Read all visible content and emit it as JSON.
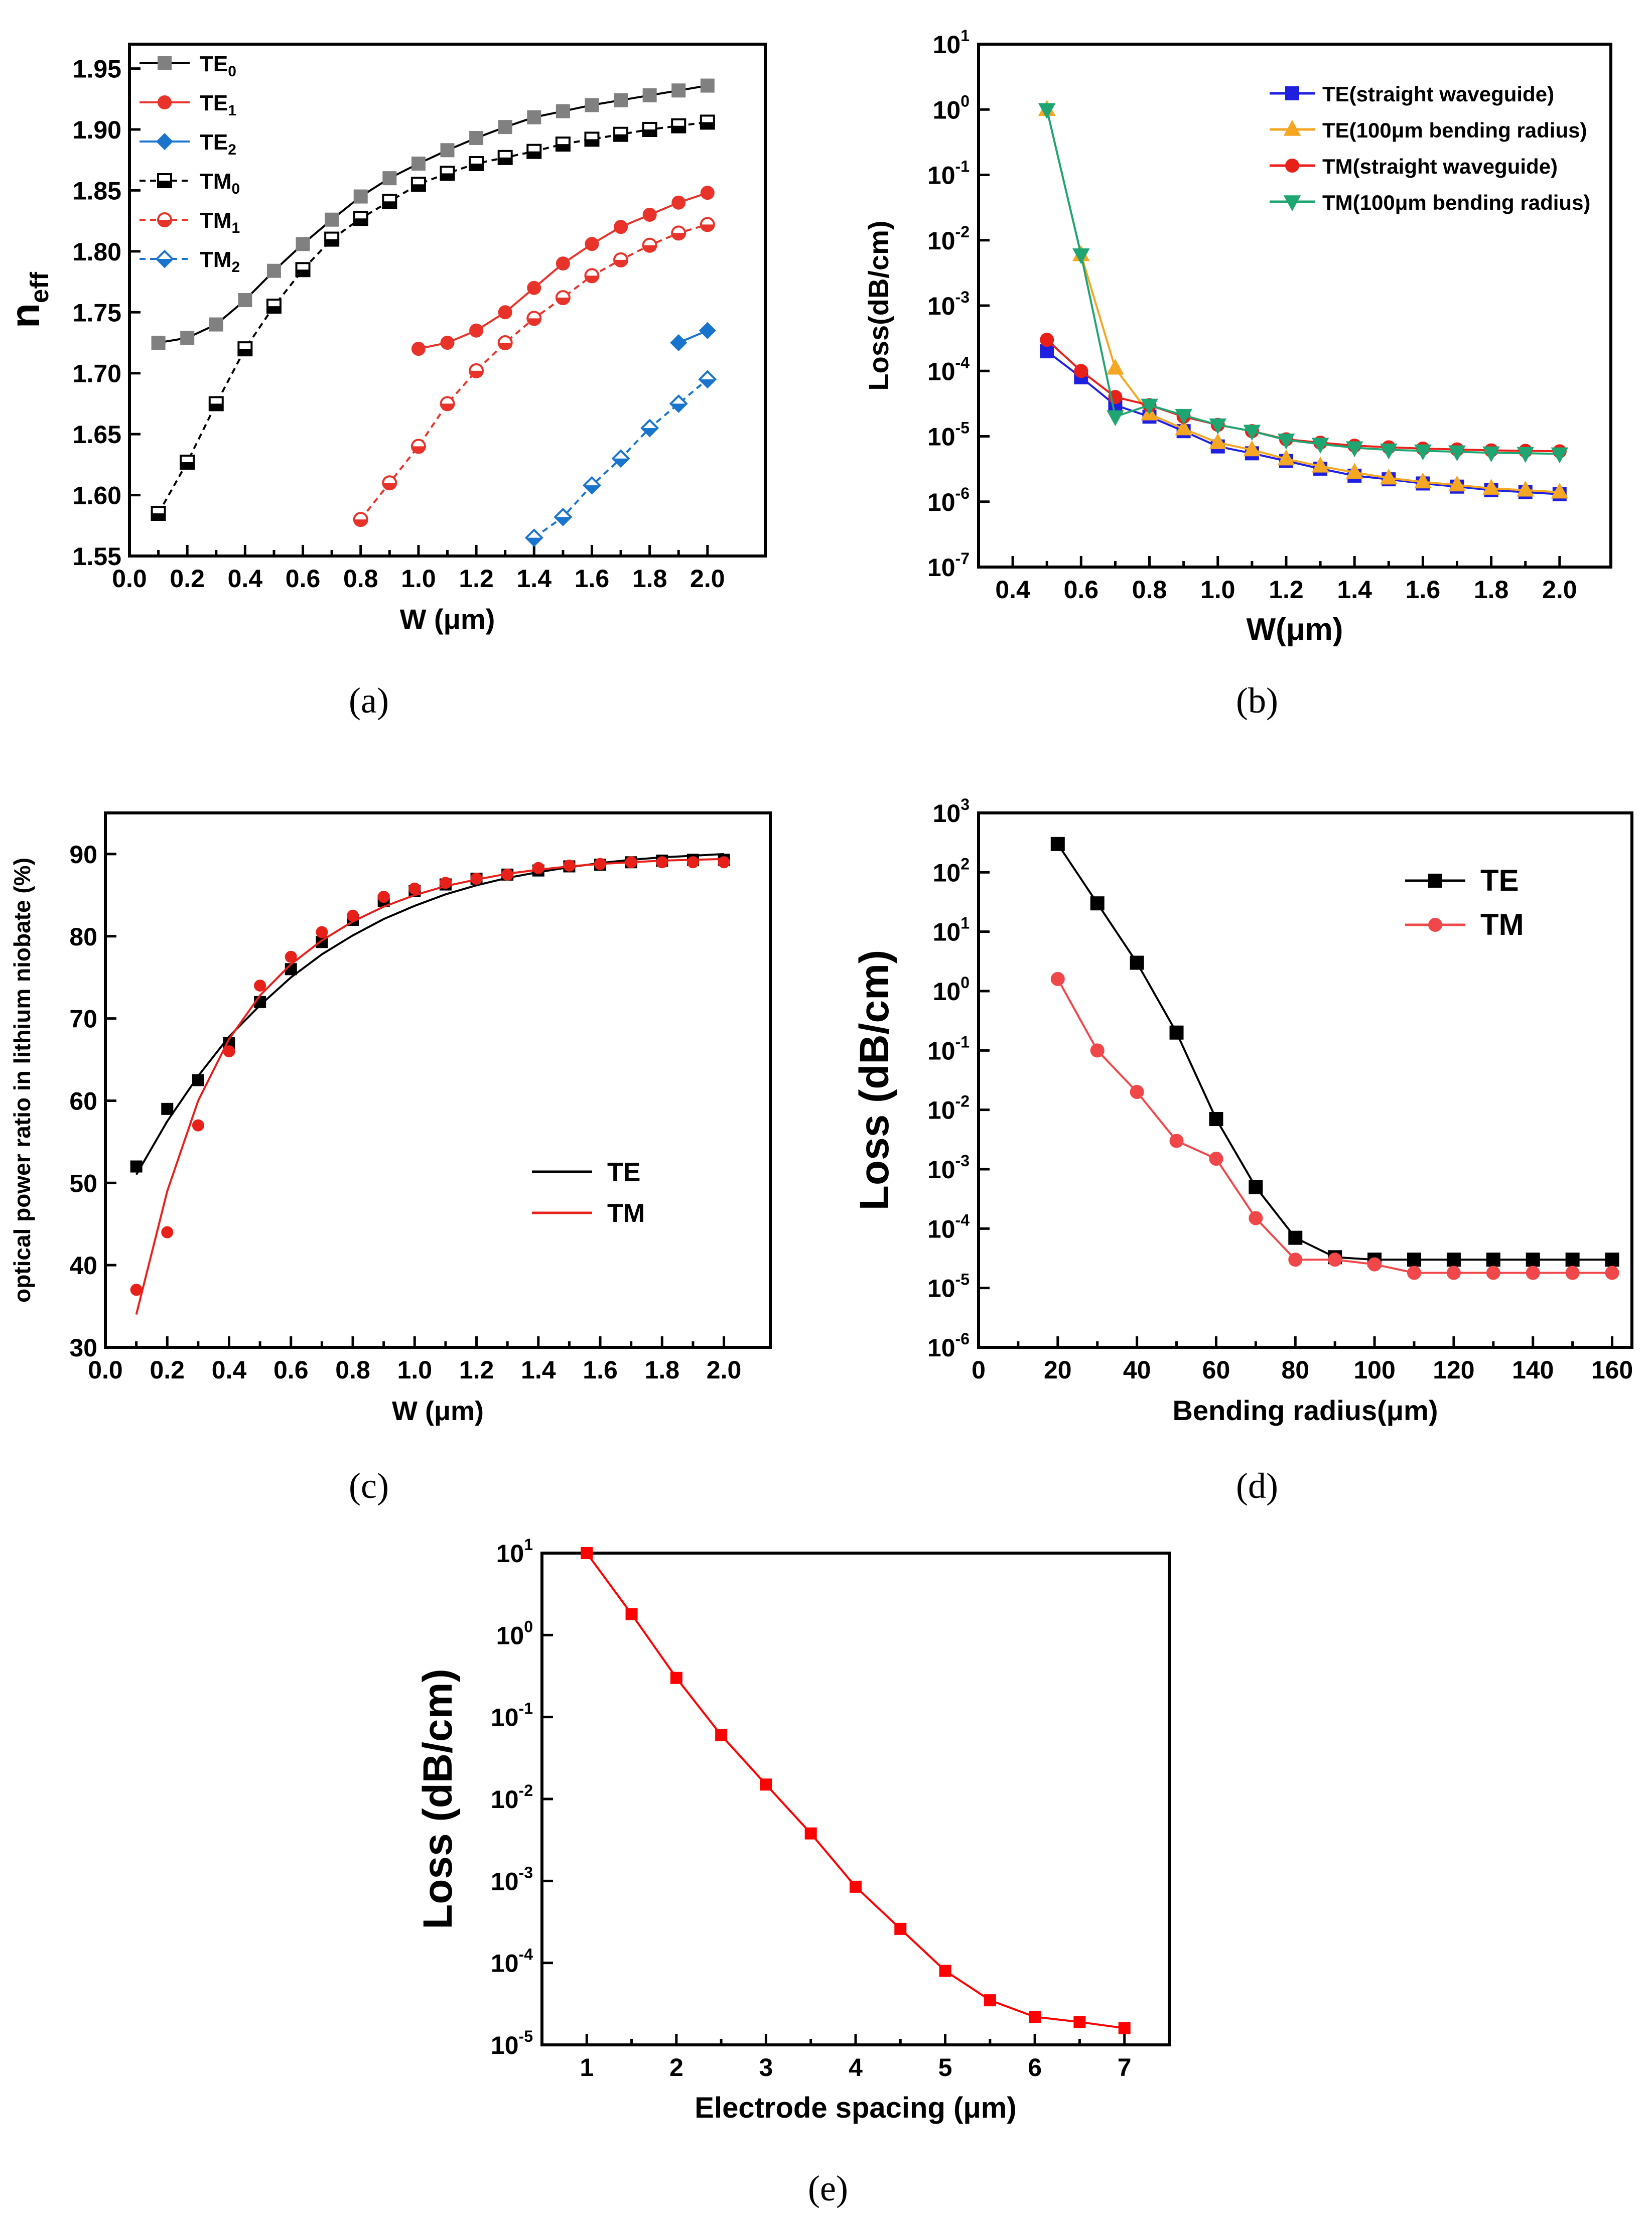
{
  "chart_data": [
    {
      "id": "a",
      "type": "line",
      "panel_label": "(a)",
      "xlabel": "W  (μm)",
      "ylabel": "n",
      "ylabel_sub": "eff",
      "xlim": [
        0.0,
        2.2
      ],
      "ylim": [
        1.55,
        1.97
      ],
      "xticks": [
        0.0,
        0.2,
        0.4,
        0.6,
        0.8,
        1.0,
        1.2,
        1.4,
        1.6,
        1.8,
        2.0
      ],
      "xtick_labels": [
        "0.0",
        "0.2",
        "0.4",
        "0.6",
        "0.8",
        "1.0",
        "1.2",
        "1.4",
        "1.6",
        "1.8",
        "2.0"
      ],
      "yticks": [
        1.55,
        1.6,
        1.65,
        1.7,
        1.75,
        1.8,
        1.85,
        1.9,
        1.95
      ],
      "ytick_labels": [
        "1.55",
        "1.60",
        "1.65",
        "1.70",
        "1.75",
        "1.80",
        "1.85",
        "1.90",
        "1.95"
      ],
      "legend_position": "top-left",
      "series": [
        {
          "name": "TE",
          "sub": "0",
          "color": "#808080",
          "marker": "square",
          "filled": true,
          "dashed": false,
          "line_color": "#000000",
          "x": [
            0.1,
            0.2,
            0.3,
            0.4,
            0.5,
            0.6,
            0.7,
            0.8,
            0.9,
            1.0,
            1.1,
            1.2,
            1.3,
            1.4,
            1.5,
            1.6,
            1.7,
            1.8,
            1.9,
            2.0
          ],
          "y": [
            1.725,
            1.729,
            1.74,
            1.76,
            1.784,
            1.806,
            1.826,
            1.845,
            1.86,
            1.872,
            1.883,
            1.893,
            1.902,
            1.91,
            1.915,
            1.92,
            1.924,
            1.928,
            1.932,
            1.936
          ]
        },
        {
          "name": "TE",
          "sub": "1",
          "color": "#e8332a",
          "marker": "circle",
          "filled": true,
          "dashed": false,
          "line_color": "#e8332a",
          "x": [
            1.0,
            1.1,
            1.2,
            1.3,
            1.4,
            1.5,
            1.6,
            1.7,
            1.8,
            1.9,
            2.0
          ],
          "y": [
            1.72,
            1.725,
            1.735,
            1.75,
            1.77,
            1.79,
            1.806,
            1.82,
            1.83,
            1.84,
            1.848
          ]
        },
        {
          "name": "TE",
          "sub": "2",
          "color": "#1874cd",
          "marker": "diamond",
          "filled": true,
          "dashed": false,
          "line_color": "#1874cd",
          "x": [
            1.9,
            2.0
          ],
          "y": [
            1.725,
            1.735
          ]
        },
        {
          "name": "TM",
          "sub": "0",
          "color": "#000000",
          "marker": "square",
          "filled": false,
          "dashed": true,
          "line_color": "#000000",
          "x": [
            0.1,
            0.2,
            0.3,
            0.4,
            0.5,
            0.6,
            0.7,
            0.8,
            0.9,
            1.0,
            1.1,
            1.2,
            1.3,
            1.4,
            1.5,
            1.6,
            1.7,
            1.8,
            1.9,
            2.0
          ],
          "y": [
            1.585,
            1.627,
            1.675,
            1.72,
            1.755,
            1.785,
            1.81,
            1.827,
            1.841,
            1.855,
            1.864,
            1.872,
            1.877,
            1.882,
            1.888,
            1.892,
            1.896,
            1.9,
            1.903,
            1.906
          ]
        },
        {
          "name": "TM",
          "sub": "1",
          "color": "#e8332a",
          "marker": "circle",
          "filled": false,
          "dashed": true,
          "line_color": "#e8332a",
          "x": [
            0.8,
            0.9,
            1.0,
            1.1,
            1.2,
            1.3,
            1.4,
            1.5,
            1.6,
            1.7,
            1.8,
            1.9,
            2.0
          ],
          "y": [
            1.58,
            1.61,
            1.64,
            1.675,
            1.702,
            1.725,
            1.745,
            1.762,
            1.78,
            1.793,
            1.805,
            1.815,
            1.822
          ]
        },
        {
          "name": "TM",
          "sub": "2",
          "color": "#1874cd",
          "marker": "diamond",
          "filled": false,
          "dashed": true,
          "line_color": "#1874cd",
          "x": [
            1.4,
            1.5,
            1.6,
            1.7,
            1.8,
            1.9,
            2.0
          ],
          "y": [
            1.565,
            1.582,
            1.608,
            1.63,
            1.655,
            1.675,
            1.695
          ]
        }
      ]
    },
    {
      "id": "b",
      "type": "line",
      "log_y": true,
      "panel_label": "(b)",
      "xlabel": "W(μm)",
      "ylabel": "Loss(dB/cm)",
      "xlim": [
        0.3,
        2.15
      ],
      "ylog_range": [
        -7,
        1
      ],
      "xticks": [
        0.4,
        0.6,
        0.8,
        1.0,
        1.2,
        1.4,
        1.6,
        1.8,
        2.0
      ],
      "xtick_labels": [
        "0.4",
        "0.6",
        "0.8",
        "1.0",
        "1.2",
        "1.4",
        "1.6",
        "1.8",
        "2.0"
      ],
      "ytick_exponents": [
        -7,
        -6,
        -5,
        -4,
        -3,
        -2,
        -1,
        0,
        1
      ],
      "legend_position": "top-right",
      "series": [
        {
          "name": "TE(straight waveguide)",
          "color": "#1f1fe0",
          "marker": "square",
          "x": [
            0.5,
            0.6,
            0.7,
            0.8,
            0.9,
            1.0,
            1.1,
            1.2,
            1.3,
            1.4,
            1.5,
            1.6,
            1.7,
            1.8,
            1.9,
            2.0
          ],
          "y": [
            0.0002,
            8e-05,
            3e-05,
            2e-05,
            1.2e-05,
            7e-06,
            5.5e-06,
            4.2e-06,
            3.2e-06,
            2.5e-06,
            2.2e-06,
            1.9e-06,
            1.7e-06,
            1.5e-06,
            1.4e-06,
            1.3e-06
          ]
        },
        {
          "name": "TE(100μm bending radius)",
          "color": "#f5a623",
          "marker": "triangle-up",
          "x": [
            0.5,
            0.6,
            0.7,
            0.8,
            0.9,
            1.0,
            1.1,
            1.2,
            1.3,
            1.4,
            1.5,
            1.6,
            1.7,
            1.8,
            1.9,
            2.0
          ],
          "y": [
            1.0,
            0.006,
            0.00011,
            2.2e-05,
            1.3e-05,
            8e-06,
            6.2e-06,
            4.5e-06,
            3.5e-06,
            2.8e-06,
            2.3e-06,
            2e-06,
            1.8e-06,
            1.6e-06,
            1.5e-06,
            1.4e-06
          ]
        },
        {
          "name": "TM(straight waveguide)",
          "color": "#e8201a",
          "marker": "circle",
          "x": [
            0.5,
            0.6,
            0.7,
            0.8,
            0.9,
            1.0,
            1.1,
            1.2,
            1.3,
            1.4,
            1.5,
            1.6,
            1.7,
            1.8,
            1.9,
            2.0
          ],
          "y": [
            0.0003,
            0.0001,
            4e-05,
            3e-05,
            2e-05,
            1.5e-05,
            1.2e-05,
            9e-06,
            8e-06,
            7.2e-06,
            6.8e-06,
            6.5e-06,
            6.3e-06,
            6.1e-06,
            6e-06,
            5.9e-06
          ]
        },
        {
          "name": "TM(100μm bending radius)",
          "color": "#1ea572",
          "marker": "triangle-down",
          "x": [
            0.5,
            0.6,
            0.7,
            0.8,
            0.9,
            1.0,
            1.1,
            1.2,
            1.3,
            1.4,
            1.5,
            1.6,
            1.7,
            1.8,
            1.9,
            2.0
          ],
          "y": [
            1.0,
            0.006,
            2e-05,
            3e-05,
            2.1e-05,
            1.5e-05,
            1.2e-05,
            8.8e-06,
            7.6e-06,
            6.7e-06,
            6.2e-06,
            6e-06,
            5.8e-06,
            5.6e-06,
            5.5e-06,
            5.4e-06
          ]
        }
      ]
    },
    {
      "id": "c",
      "type": "scatter",
      "panel_label": "(c)",
      "xlabel": "W (μm)",
      "ylabel": "optical power ratio in lithium niobate (%)",
      "xlim": [
        0.0,
        2.15
      ],
      "ylim": [
        30,
        95
      ],
      "xticks": [
        0.0,
        0.2,
        0.4,
        0.6,
        0.8,
        1.0,
        1.2,
        1.4,
        1.6,
        1.8,
        2.0
      ],
      "xtick_labels": [
        "0.0",
        "0.2",
        "0.4",
        "0.6",
        "0.8",
        "1.0",
        "1.2",
        "1.4",
        "1.6",
        "1.8",
        "2.0"
      ],
      "yticks": [
        30,
        40,
        50,
        60,
        70,
        80,
        90
      ],
      "ytick_labels": [
        "30",
        "40",
        "50",
        "60",
        "70",
        "80",
        "90"
      ],
      "legend_position": "center-right",
      "series": [
        {
          "name": "TE",
          "color": "#000000",
          "marker": "square",
          "x": [
            0.1,
            0.2,
            0.3,
            0.4,
            0.5,
            0.6,
            0.7,
            0.8,
            0.9,
            1.0,
            1.1,
            1.2,
            1.3,
            1.4,
            1.5,
            1.6,
            1.7,
            1.8,
            1.9,
            2.0
          ],
          "y": [
            52,
            59,
            62.5,
            67,
            72,
            76,
            79.3,
            82,
            84.3,
            85.5,
            86.3,
            87,
            87.5,
            88,
            88.5,
            88.7,
            89,
            89.2,
            89.3,
            89.3
          ],
          "fit_x": [
            0.1,
            0.2,
            0.3,
            0.4,
            0.5,
            0.6,
            0.7,
            0.8,
            0.9,
            1.0,
            1.1,
            1.2,
            1.3,
            1.4,
            1.5,
            1.6,
            1.7,
            1.8,
            1.9,
            2.0
          ],
          "fit_y": [
            51,
            57.5,
            63,
            67.8,
            71.6,
            75,
            77.8,
            80.1,
            82.1,
            83.7,
            85.1,
            86.2,
            87.1,
            87.8,
            88.4,
            88.9,
            89.3,
            89.6,
            89.8,
            90
          ]
        },
        {
          "name": "TM",
          "color": "#e8201a",
          "marker": "circle",
          "x": [
            0.1,
            0.2,
            0.3,
            0.4,
            0.5,
            0.6,
            0.7,
            0.8,
            0.9,
            1.0,
            1.1,
            1.2,
            1.3,
            1.4,
            1.5,
            1.6,
            1.7,
            1.8,
            1.9,
            2.0
          ],
          "y": [
            37,
            44,
            57,
            66,
            74,
            77.5,
            80.5,
            82.5,
            84.8,
            85.8,
            86.5,
            87,
            87.5,
            88.3,
            88.6,
            88.8,
            89,
            89,
            89,
            89
          ],
          "fit_x": [
            0.1,
            0.2,
            0.3,
            0.4,
            0.5,
            0.6,
            0.7,
            0.8,
            0.9,
            1.0,
            1.1,
            1.2,
            1.3,
            1.4,
            1.5,
            1.6,
            1.7,
            1.8,
            1.9,
            2.0
          ],
          "fit_y": [
            34,
            49,
            60,
            67.5,
            72.8,
            76.6,
            79.5,
            81.8,
            83.6,
            85,
            86.1,
            86.9,
            87.6,
            88.1,
            88.5,
            88.8,
            89,
            89.2,
            89.3,
            89.4
          ]
        }
      ]
    },
    {
      "id": "d",
      "type": "line",
      "log_y": true,
      "panel_label": "(d)",
      "xlabel": "Bending radius(μm)",
      "ylabel": "Loss (dB/cm)",
      "xlim": [
        0,
        165
      ],
      "ylog_range": [
        -6,
        3
      ],
      "xticks": [
        0,
        20,
        40,
        60,
        80,
        100,
        120,
        140,
        160
      ],
      "xtick_labels": [
        "0",
        "20",
        "40",
        "60",
        "80",
        "100",
        "120",
        "140",
        "160"
      ],
      "ytick_exponents": [
        -6,
        -5,
        -4,
        -3,
        -2,
        -1,
        0,
        1,
        2,
        3
      ],
      "legend_position": "top-right",
      "series": [
        {
          "name": "TE",
          "color": "#000000",
          "marker": "square",
          "x": [
            20,
            30,
            40,
            50,
            60,
            70,
            80,
            90,
            100,
            110,
            120,
            130,
            140,
            150,
            160
          ],
          "y": [
            300,
            30,
            3,
            0.2,
            0.007,
            0.0005,
            7e-05,
            3.3e-05,
            3e-05,
            3e-05,
            3e-05,
            3e-05,
            3e-05,
            3e-05,
            3e-05
          ]
        },
        {
          "name": "TM",
          "color": "#f0474a",
          "marker": "circle",
          "x": [
            20,
            30,
            40,
            50,
            60,
            70,
            80,
            90,
            100,
            110,
            120,
            130,
            140,
            150,
            160
          ],
          "y": [
            1.6,
            0.1,
            0.02,
            0.003,
            0.0015,
            0.00015,
            3e-05,
            3e-05,
            2.5e-05,
            1.8e-05,
            1.8e-05,
            1.8e-05,
            1.8e-05,
            1.8e-05,
            1.8e-05
          ]
        }
      ]
    },
    {
      "id": "e",
      "type": "line",
      "log_y": true,
      "panel_label": "(e)",
      "xlabel": "Electrode spacing  (μm)",
      "ylabel": "Loss (dB/cm)",
      "xlim": [
        0.5,
        7.5
      ],
      "ylog_range": [
        -5,
        1
      ],
      "xticks": [
        1,
        2,
        3,
        4,
        5,
        6,
        7
      ],
      "xtick_labels": [
        "1",
        "2",
        "3",
        "4",
        "5",
        "6",
        "7"
      ],
      "ytick_exponents": [
        -5,
        -4,
        -3,
        -2,
        -1,
        0,
        1
      ],
      "series": [
        {
          "name": "Loss",
          "color": "#ff0000",
          "marker": "square",
          "x": [
            1,
            1.5,
            2,
            2.5,
            3,
            3.5,
            4,
            4.5,
            5,
            5.5,
            6,
            6.5,
            7
          ],
          "y": [
            10,
            1.8,
            0.3,
            0.06,
            0.015,
            0.0038,
            0.00085,
            0.00026,
            8e-05,
            3.5e-05,
            2.2e-05,
            1.9e-05,
            1.6e-05
          ]
        }
      ]
    }
  ]
}
